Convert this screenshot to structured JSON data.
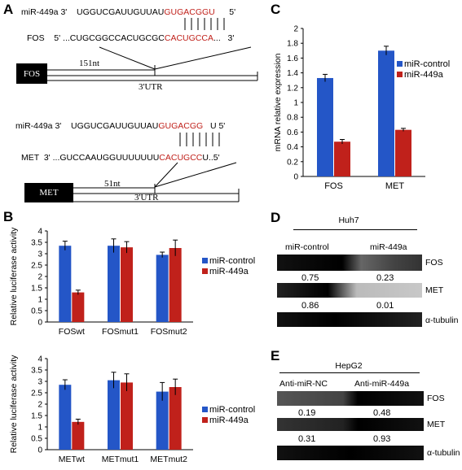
{
  "panels": {
    "a": "A",
    "b": "B",
    "c": "C",
    "d": "D",
    "e": "E"
  },
  "seqA": {
    "mir_label": "miR-449a",
    "mir_3": "3'",
    "mir_seq_black": "UGGUCGAUUGUUAU",
    "mir_seq_red": "GUGACGGU",
    "mir_5": "5'",
    "target_label": "FOS",
    "target_5": "5'",
    "target_seq_black": "...CUGCGGCCACUGCGC",
    "target_seq_red": "CACUGCCA",
    "target_tail": "...",
    "target_3": "3'",
    "box": "FOS",
    "dist": "151nt",
    "utr": "3'UTR"
  },
  "seqB": {
    "mir_label": "miR-449a",
    "mir_3": "3'",
    "mir_seq_black": "UGGUCGAUUGUUAU",
    "mir_seq_red": "GUGACGG",
    "mir_5": "U 5'",
    "target_label": "MET",
    "target_5": "3'",
    "target_seq_black": "...GUCCAAUGGUUUUUUU",
    "target_seq_red": "CACUGCC",
    "target_tail": "U..",
    "target_3": "5'",
    "box": "MET",
    "dist": "51nt",
    "utr": "3'UTR"
  },
  "chart_data": [
    {
      "type": "bar",
      "ylabel": "Relative luciferase activity",
      "categories": [
        "FOSwt",
        "FOSmut1",
        "FOSmut2"
      ],
      "yticks": [
        "0",
        "0.5",
        "1",
        "1.5",
        "2",
        "2.5",
        "3",
        "3.5",
        "4"
      ],
      "ylim": [
        0,
        4
      ],
      "series": [
        {
          "name": "miR-control",
          "color": "#2456c7",
          "values": [
            3.35,
            3.35,
            2.95
          ],
          "err": [
            0.2,
            0.3,
            0.12
          ]
        },
        {
          "name": "miR-449a",
          "color": "#c0211b",
          "values": [
            1.3,
            3.28,
            3.25
          ],
          "err": [
            0.1,
            0.25,
            0.35
          ]
        }
      ],
      "legend": "right"
    },
    {
      "type": "bar",
      "ylabel": "Relative luciferase activity",
      "categories": [
        "METwt",
        "METmut1",
        "METmut2"
      ],
      "yticks": [
        "0",
        "0.5",
        "1",
        "1.5",
        "2",
        "2.5",
        "3",
        "3.5",
        "4"
      ],
      "ylim": [
        0,
        4
      ],
      "series": [
        {
          "name": "miR-control",
          "color": "#2456c7",
          "values": [
            2.85,
            3.05,
            2.55
          ],
          "err": [
            0.22,
            0.35,
            0.4
          ]
        },
        {
          "name": "miR-449a",
          "color": "#c0211b",
          "values": [
            1.22,
            2.95,
            2.75
          ],
          "err": [
            0.12,
            0.38,
            0.35
          ]
        }
      ],
      "legend": "right"
    },
    {
      "type": "bar",
      "ylabel": "mRNA relative expression",
      "categories": [
        "FOS",
        "MET"
      ],
      "yticks": [
        "0",
        "0.2",
        "0.4",
        "0.6",
        "0.8",
        "1",
        "1.2",
        "1.4",
        "1.6",
        "1.8",
        "2"
      ],
      "ylim": [
        0,
        2
      ],
      "series": [
        {
          "name": "miR-control",
          "color": "#2456c7",
          "values": [
            1.33,
            1.7
          ],
          "err": [
            0.05,
            0.06
          ]
        },
        {
          "name": "miR-449a",
          "color": "#c0211b",
          "values": [
            0.47,
            0.63
          ],
          "err": [
            0.03,
            0.02
          ]
        }
      ],
      "legend": "right"
    }
  ],
  "blotD": {
    "title": "Huh7",
    "col1": "miR-control",
    "col2": "miR-449a",
    "row1": "FOS",
    "v1a": "0.75",
    "v1b": "0.23",
    "row2": "MET",
    "v2a": "0.86",
    "v2b": "0.01",
    "row3": "α-tubulin"
  },
  "blotE": {
    "title": "HepG2",
    "col1": "Anti-miR-NC",
    "col2": "Anti-miR-449a",
    "row1": "FOS",
    "v1a": "0.19",
    "v1b": "0.48",
    "row2": "MET",
    "v2a": "0.31",
    "v2b": "0.93",
    "row3": "α-tubulin"
  }
}
